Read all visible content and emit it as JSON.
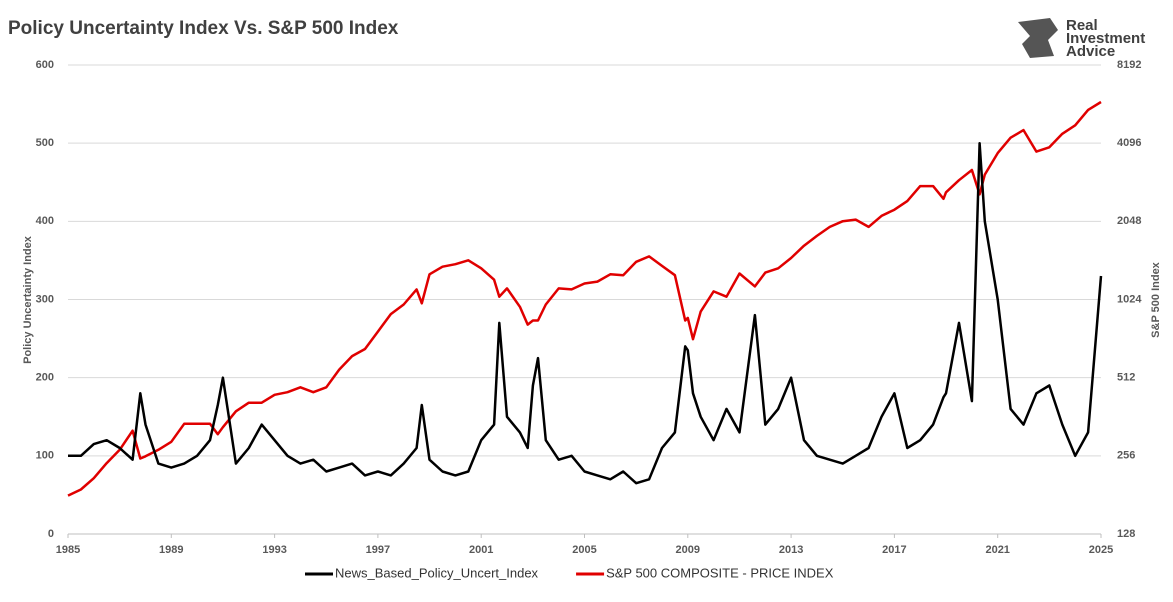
{
  "logo_text": [
    "Real",
    "Investment",
    "Advice"
  ],
  "chart_data": {
    "type": "line",
    "title": "Policy Uncertainty Index Vs. S&P 500 Index",
    "y_label": "Policy Uncertainty Index",
    "y2_label": "S&P 500 Index",
    "x": [
      1985,
      1985.5,
      1986,
      1986.5,
      1987,
      1987.5,
      1987.8,
      1988,
      1988.5,
      1989,
      1989.5,
      1990,
      1990.5,
      1990.8,
      1991,
      1991.5,
      1992,
      1992.5,
      1993,
      1993.5,
      1994,
      1994.5,
      1995,
      1995.5,
      1996,
      1996.5,
      1997,
      1997.5,
      1998,
      1998.5,
      1998.7,
      1999,
      1999.5,
      2000,
      2000.5,
      2001,
      2001.5,
      2001.7,
      2002,
      2002.5,
      2002.8,
      2003,
      2003.2,
      2003.5,
      2004,
      2004.5,
      2005,
      2005.5,
      2006,
      2006.5,
      2007,
      2007.5,
      2008,
      2008.5,
      2008.9,
      2009,
      2009.2,
      2009.5,
      2010,
      2010.5,
      2011,
      2011.6,
      2012,
      2012.5,
      2013,
      2013.5,
      2014,
      2014.5,
      2015,
      2015.5,
      2016,
      2016.5,
      2017,
      2017.5,
      2018,
      2018.5,
      2018.9,
      2019,
      2019.5,
      2020,
      2020.3,
      2020.5,
      2021,
      2021.5,
      2022,
      2022.5,
      2023,
      2023.5,
      2024,
      2024.5,
      2025
    ],
    "series": [
      {
        "name": "S&P 500 COMPOSITE - PRICE INDEX",
        "color": "#e00000",
        "axis": "y2",
        "values": [
          180,
          190,
          210,
          240,
          270,
          320,
          250,
          255,
          270,
          290,
          340,
          340,
          340,
          310,
          330,
          380,
          410,
          410,
          440,
          450,
          470,
          450,
          470,
          550,
          620,
          660,
          770,
          900,
          980,
          1120,
          990,
          1280,
          1370,
          1400,
          1450,
          1350,
          1220,
          1050,
          1130,
          960,
          820,
          850,
          850,
          980,
          1130,
          1120,
          1180,
          1200,
          1280,
          1270,
          1430,
          1500,
          1380,
          1270,
          850,
          870,
          720,
          920,
          1100,
          1050,
          1290,
          1150,
          1300,
          1350,
          1480,
          1650,
          1800,
          1950,
          2050,
          2080,
          1950,
          2150,
          2270,
          2450,
          2800,
          2800,
          2500,
          2650,
          2950,
          3230,
          2600,
          3100,
          3750,
          4300,
          4600,
          3800,
          3950,
          4450,
          4800,
          5500,
          5900
        ]
      },
      {
        "name": "News_Based_Policy_Uncert_Index",
        "color": "#000000",
        "values": [
          100,
          100,
          115,
          120,
          110,
          95,
          180,
          140,
          90,
          85,
          90,
          100,
          120,
          165,
          200,
          90,
          110,
          140,
          120,
          100,
          90,
          95,
          80,
          85,
          90,
          75,
          80,
          75,
          90,
          110,
          165,
          95,
          80,
          75,
          80,
          120,
          140,
          270,
          150,
          130,
          110,
          190,
          225,
          120,
          95,
          100,
          80,
          75,
          70,
          80,
          65,
          70,
          110,
          130,
          240,
          235,
          180,
          150,
          120,
          160,
          130,
          280,
          140,
          160,
          200,
          120,
          100,
          95,
          90,
          100,
          110,
          150,
          180,
          110,
          120,
          140,
          175,
          180,
          270,
          170,
          500,
          400,
          300,
          160,
          140,
          180,
          190,
          140,
          100,
          130,
          330
        ]
      }
    ],
    "xlim": [
      1985,
      2025
    ],
    "xticks": [
      1985,
      1989,
      1993,
      1997,
      2001,
      2005,
      2009,
      2013,
      2017,
      2021,
      2025
    ],
    "ylim": [
      0,
      600
    ],
    "yticks": [
      0,
      100,
      200,
      300,
      400,
      500,
      600
    ],
    "y2lim": [
      128,
      8192
    ],
    "y2ticks": [
      128,
      256,
      512,
      1024,
      2048,
      4096,
      8192
    ],
    "y2_log": true,
    "grid": true,
    "legend": "bottom"
  }
}
